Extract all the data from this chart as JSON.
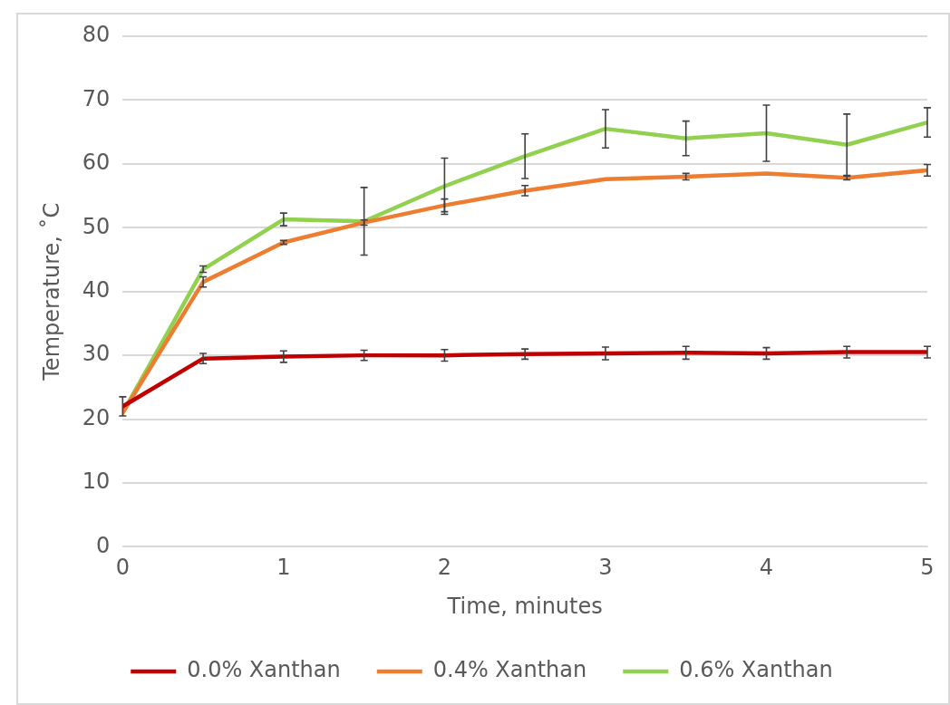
{
  "chart_data": {
    "type": "line",
    "xlabel": "Time, minutes",
    "ylabel": "Temperature, ˚C",
    "x": [
      0,
      0.5,
      1,
      1.5,
      2,
      2.5,
      3,
      3.5,
      4,
      4.5,
      5
    ],
    "series": [
      {
        "name": "0.0% Xanthan",
        "color": "#c00000",
        "values": [
          22,
          29.5,
          29.8,
          30,
          30,
          30.2,
          30.3,
          30.4,
          30.3,
          30.5,
          30.5
        ],
        "errors": [
          1.5,
          0.8,
          0.9,
          0.8,
          0.9,
          0.8,
          1,
          1,
          0.9,
          0.9,
          0.9
        ]
      },
      {
        "name": "0.4% Xanthan",
        "color": "#ed7d31",
        "values": [
          21,
          41.5,
          47.7,
          50.8,
          53.5,
          55.8,
          57.6,
          58,
          58.5,
          57.8,
          59
        ],
        "errors": [
          null,
          0.8,
          0.3,
          0.4,
          1,
          0.8,
          null,
          0.5,
          null,
          0.3,
          0.9
        ]
      },
      {
        "name": "0.6% Xanthan",
        "color": "#92d050",
        "values": [
          21,
          43.5,
          51.3,
          51,
          56.5,
          61.2,
          65.5,
          64,
          64.8,
          63,
          66.5
        ],
        "errors": [
          null,
          0.5,
          1,
          5.3,
          4.4,
          3.5,
          3,
          2.7,
          4.4,
          4.8,
          2.3
        ]
      }
    ],
    "xlim": [
      0,
      5
    ],
    "xticks": [
      0,
      1,
      2,
      3,
      4,
      5
    ],
    "ylim": [
      0,
      80
    ],
    "yticks": [
      0,
      10,
      20,
      30,
      40,
      50,
      60,
      70,
      80
    ],
    "grid": "y",
    "legend": "bottom",
    "line_style": "solid"
  }
}
